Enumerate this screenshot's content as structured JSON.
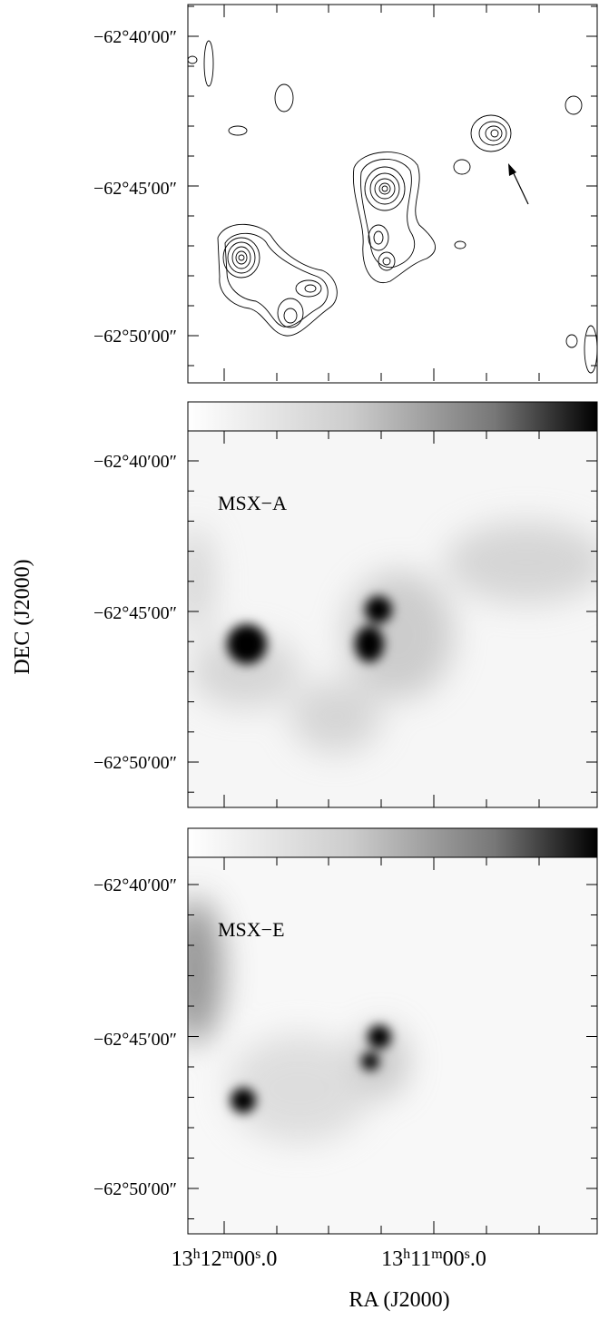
{
  "panels": [
    {
      "yticks": [
        "−62°40′00″",
        "−62°45′00″",
        "−62°50′00″"
      ]
    },
    {
      "label": "MSX−A",
      "yticks": [
        "−62°40′00″",
        "−62°45′00″",
        "−62°50′00″"
      ]
    },
    {
      "label": "MSX−E",
      "yticks": [
        "−62°40′00″",
        "−62°45′00″",
        "−62°50′00″"
      ]
    }
  ],
  "xticks": [
    [
      "13",
      "h",
      "12",
      "m",
      "00",
      "s",
      ".0"
    ],
    [
      "13",
      "h",
      "11",
      "m",
      "00",
      "s",
      ".0"
    ]
  ],
  "xlabel": "RA (J2000)",
  "ylabel": "DEC (J2000)"
}
